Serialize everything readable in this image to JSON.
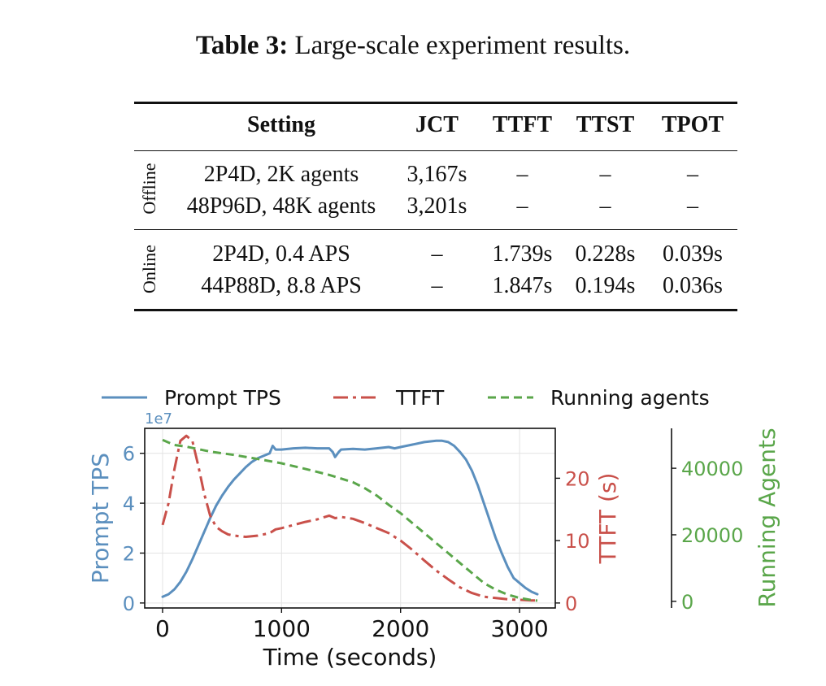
{
  "caption": {
    "label": "Table 3:",
    "text": "Large-scale experiment results."
  },
  "table": {
    "headers": [
      "Setting",
      "JCT",
      "TTFT",
      "TTST",
      "TPOT"
    ],
    "groups": [
      {
        "name": "Offline",
        "rows": [
          [
            "2P4D, 2K agents",
            "3,167s",
            "–",
            "–",
            "–"
          ],
          [
            "48P96D, 48K agents",
            "3,201s",
            "–",
            "–",
            "–"
          ]
        ]
      },
      {
        "name": "Online",
        "rows": [
          [
            "2P4D, 0.4 APS",
            "–",
            "1.739s",
            "0.228s",
            "0.039s"
          ],
          [
            "44P88D, 8.8 APS",
            "–",
            "1.847s",
            "0.194s",
            "0.036s"
          ]
        ]
      }
    ]
  },
  "chart_data": {
    "type": "line",
    "xlabel": "Time (seconds)",
    "xlim": [
      -150,
      3300
    ],
    "xticks": [
      0,
      1000,
      2000,
      3000
    ],
    "legend": [
      "Prompt TPS",
      "TTFT",
      "Running agents"
    ],
    "colors": {
      "tps": "#5b8fbe",
      "ttft": "#c9504a",
      "agents": "#5aa64a"
    },
    "axes": [
      {
        "key": "tps",
        "label": "Prompt TPS",
        "offset_label": "1e7",
        "ylim": [
          -0.2,
          7.0
        ],
        "ticks": [
          0,
          2,
          4,
          6
        ]
      },
      {
        "key": "ttft",
        "label": "TTFT (s)",
        "ylim": [
          -0.8,
          28.0
        ],
        "ticks": [
          0,
          10,
          20
        ]
      },
      {
        "key": "agents",
        "label": "Running Agents",
        "ylim": [
          -2000,
          52000
        ],
        "ticks": [
          0,
          20000,
          40000
        ]
      }
    ],
    "series": [
      {
        "name": "Prompt TPS",
        "key": "tps",
        "style": "solid",
        "x": [
          0,
          50,
          100,
          150,
          200,
          250,
          300,
          350,
          400,
          450,
          500,
          550,
          600,
          650,
          700,
          750,
          800,
          850,
          900,
          925,
          950,
          1000,
          1100,
          1200,
          1300,
          1400,
          1430,
          1450,
          1480,
          1500,
          1600,
          1700,
          1800,
          1900,
          1950,
          2000,
          2100,
          2200,
          2300,
          2350,
          2400,
          2450,
          2500,
          2550,
          2600,
          2650,
          2700,
          2750,
          2800,
          2850,
          2900,
          2950,
          3000,
          3050,
          3100,
          3150
        ],
        "values": [
          0.25,
          0.35,
          0.55,
          0.85,
          1.25,
          1.75,
          2.3,
          2.85,
          3.4,
          3.9,
          4.3,
          4.65,
          4.95,
          5.2,
          5.45,
          5.65,
          5.8,
          5.9,
          6.0,
          6.3,
          6.15,
          6.15,
          6.2,
          6.22,
          6.2,
          6.2,
          6.05,
          5.85,
          6.05,
          6.15,
          6.18,
          6.15,
          6.2,
          6.25,
          6.2,
          6.25,
          6.35,
          6.45,
          6.5,
          6.5,
          6.45,
          6.3,
          6.05,
          5.75,
          5.3,
          4.7,
          4.0,
          3.3,
          2.6,
          2.0,
          1.45,
          1.0,
          0.8,
          0.6,
          0.45,
          0.35
        ]
      },
      {
        "name": "TTFT",
        "key": "ttft",
        "style": "dashdot",
        "x": [
          0,
          50,
          100,
          150,
          200,
          250,
          300,
          350,
          400,
          450,
          500,
          550,
          600,
          700,
          800,
          900,
          950,
          1000,
          1100,
          1200,
          1300,
          1400,
          1450,
          1500,
          1600,
          1700,
          1800,
          1900,
          2000,
          2100,
          2200,
          2300,
          2400,
          2500,
          2600,
          2700,
          2800,
          2900,
          3000,
          3100,
          3150
        ],
        "values": [
          12.5,
          16,
          21.5,
          26,
          26.8,
          26,
          22,
          17.5,
          14,
          12.2,
          11.5,
          11.0,
          10.8,
          10.6,
          10.8,
          11.2,
          11.8,
          12.0,
          12.5,
          13.0,
          13.4,
          14.0,
          13.6,
          13.8,
          13.5,
          12.8,
          12.0,
          11.2,
          10.0,
          8.5,
          6.8,
          5.2,
          3.8,
          2.5,
          1.6,
          1.0,
          0.8,
          0.6,
          0.5,
          0.4,
          0.4
        ]
      },
      {
        "name": "Running agents",
        "key": "agents",
        "style": "dashed",
        "x": [
          0,
          100,
          200,
          400,
          600,
          800,
          1000,
          1200,
          1400,
          1600,
          1700,
          1800,
          1900,
          2000,
          2100,
          2200,
          2300,
          2400,
          2500,
          2600,
          2700,
          2800,
          2900,
          3000,
          3100,
          3150
        ],
        "values": [
          48500,
          47000,
          46500,
          45000,
          44000,
          42800,
          41500,
          39800,
          38000,
          35800,
          34000,
          31800,
          29000,
          26500,
          23500,
          20500,
          17500,
          14500,
          11500,
          8500,
          5500,
          3500,
          2000,
          1000,
          400,
          200
        ]
      }
    ]
  }
}
